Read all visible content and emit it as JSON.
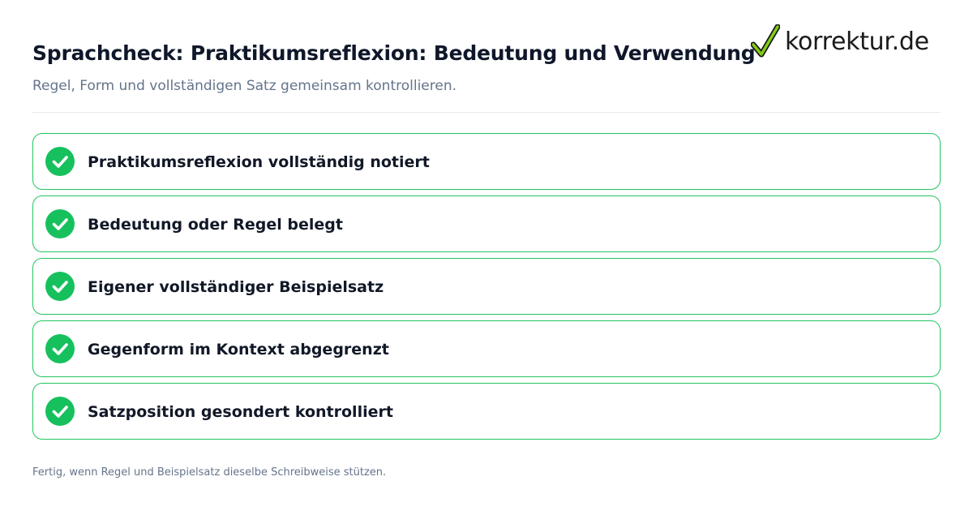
{
  "header": {
    "title": "Sprachcheck: Praktikumsreflexion: Bedeutung und Verwendung",
    "subtitle": "Regel, Form und vollständigen Satz gemeinsam kontrollieren."
  },
  "brand": {
    "logo_text": "korrektur.de",
    "logo_icon": "checkmark-icon",
    "check_color": "#22c55e"
  },
  "checklist": {
    "items": [
      {
        "label": "Praktikumsreflexion vollständig notiert",
        "checked": true,
        "icon": "checkmark-icon"
      },
      {
        "label": "Bedeutung oder Regel belegt",
        "checked": true,
        "icon": "checkmark-icon"
      },
      {
        "label": "Eigener vollständiger Beispielsatz",
        "checked": true,
        "icon": "checkmark-icon"
      },
      {
        "label": "Gegenform im Kontext abgegrenzt",
        "checked": true,
        "icon": "checkmark-icon"
      },
      {
        "label": "Satzposition gesondert kontrolliert",
        "checked": true,
        "icon": "checkmark-icon"
      }
    ]
  },
  "footer": {
    "note": "Fertig, wenn Regel und Beispielsatz dieselbe Schreibweise stützen."
  },
  "colors": {
    "accent_green": "#16c15d",
    "border_green": "#22c55e",
    "title_text": "#0f172a",
    "muted_text": "#64748b"
  }
}
